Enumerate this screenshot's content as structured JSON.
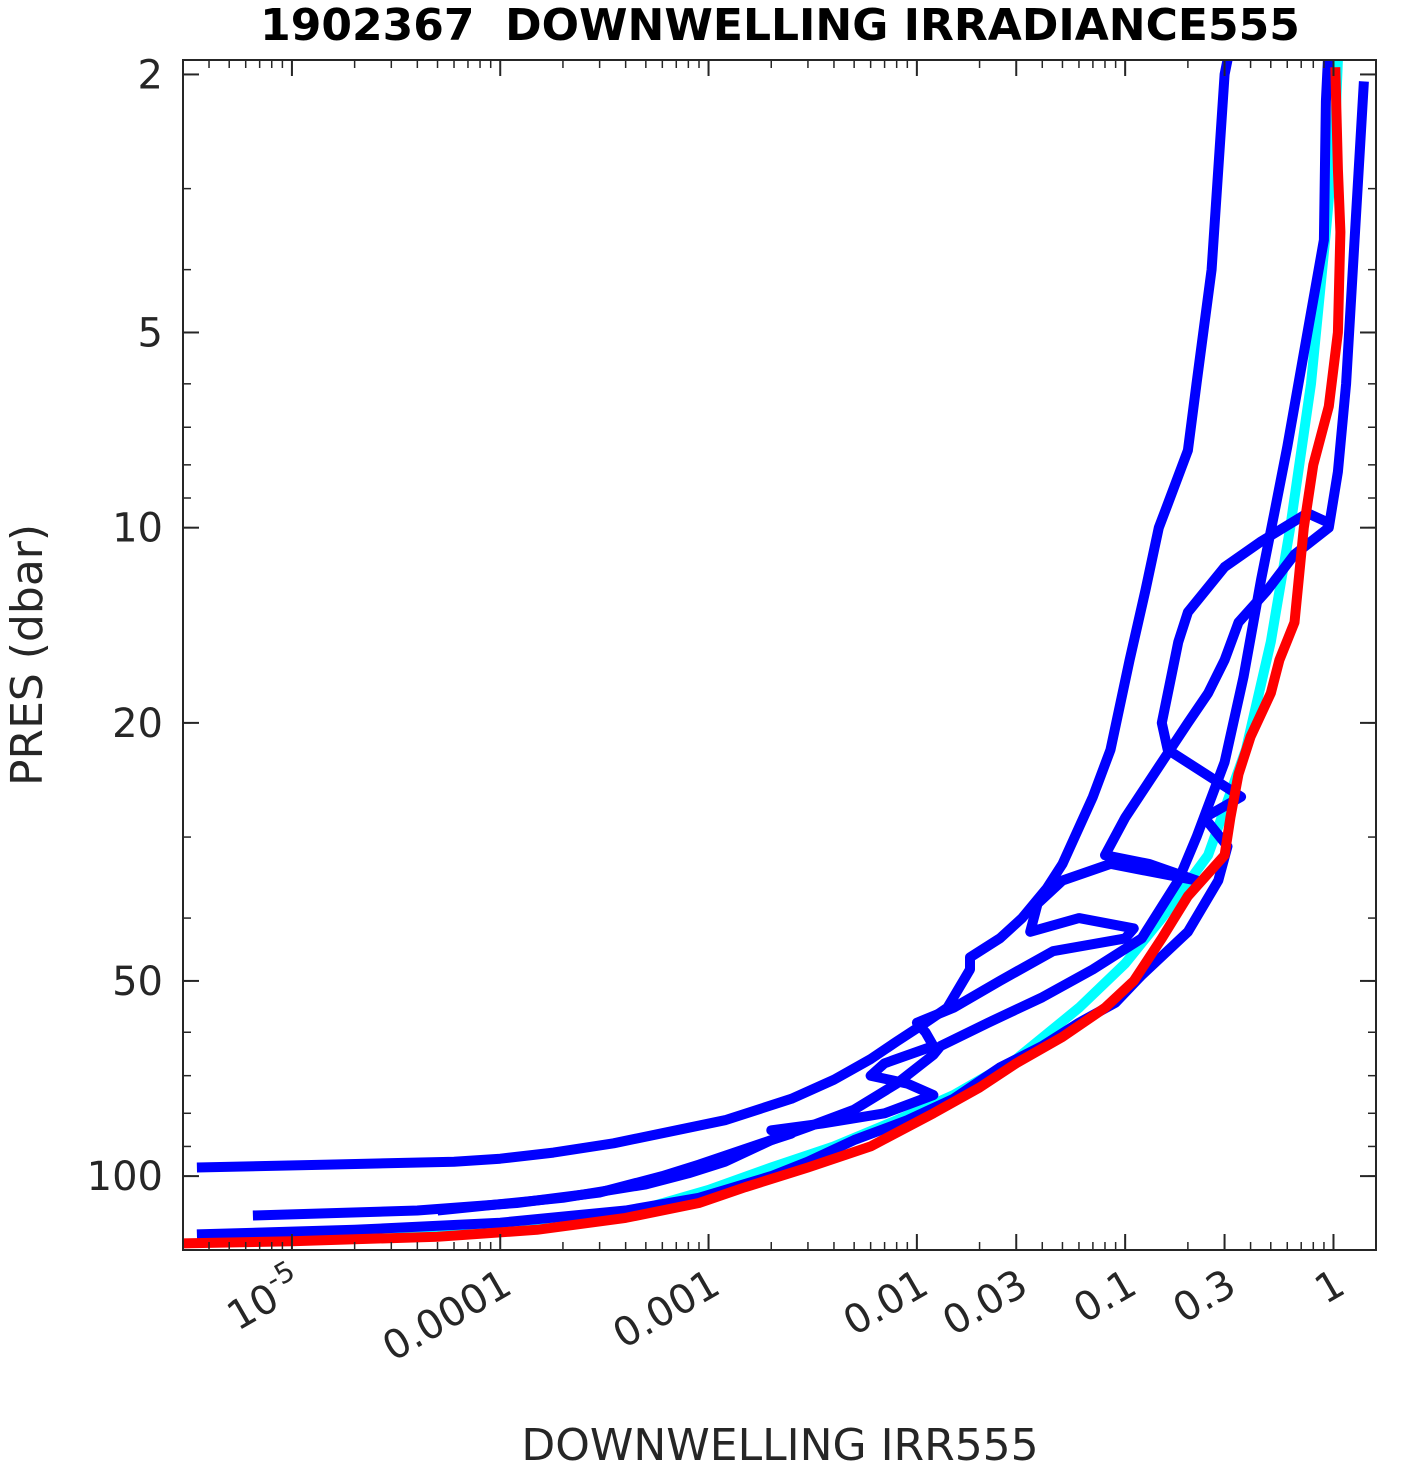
{
  "chart_data": {
    "type": "line",
    "title": "1902367  DOWNWELLING IRRADIANCE555",
    "xlabel": "DOWNWELLING IRR555",
    "ylabel": "PRES (dbar)",
    "x_scale": "log",
    "y_scale": "log",
    "y_reversed": true,
    "xlim": [
      3e-06,
      1.6
    ],
    "ylim": [
      1.9,
      130
    ],
    "x_ticks": [
      {
        "value": 1e-05,
        "base": "10",
        "exp": "-5"
      },
      {
        "value": 0.0001,
        "label": "0.0001"
      },
      {
        "value": 0.001,
        "label": "0.001"
      },
      {
        "value": 0.01,
        "label": "0.01"
      },
      {
        "value": 0.03,
        "label": "0.03"
      },
      {
        "value": 0.1,
        "label": "0.1"
      },
      {
        "value": 0.3,
        "label": "0.3"
      },
      {
        "value": 1,
        "label": "1"
      }
    ],
    "y_ticks": [
      {
        "value": 2,
        "label": "2"
      },
      {
        "value": 5,
        "label": "5"
      },
      {
        "value": 10,
        "label": "10"
      },
      {
        "value": 20,
        "label": "20"
      },
      {
        "value": 50,
        "label": "50"
      },
      {
        "value": 100,
        "label": "100"
      }
    ],
    "grid": false,
    "series": [
      {
        "color": "#00ffff",
        "points": [
          [
            9e-06,
            125
          ],
          [
            3e-05,
            123
          ],
          [
            0.0001,
            120
          ],
          [
            0.0005,
            112
          ],
          [
            0.001,
            105
          ],
          [
            0.002,
            97
          ],
          [
            0.004,
            90
          ],
          [
            0.008,
            82
          ],
          [
            0.015,
            75
          ],
          [
            0.03,
            66
          ],
          [
            0.06,
            55
          ],
          [
            0.1,
            47
          ],
          [
            0.15,
            40
          ],
          [
            0.25,
            32
          ],
          [
            0.38,
            22
          ],
          [
            0.5,
            15
          ],
          [
            0.62,
            10
          ],
          [
            0.78,
            6
          ],
          [
            0.92,
            3.5
          ],
          [
            1.02,
            2.4
          ],
          [
            1.05,
            1.9
          ]
        ]
      },
      {
        "color": "#0000ff",
        "points": [
          [
            3.5e-06,
            97
          ],
          [
            1.5e-05,
            96
          ],
          [
            6e-05,
            95
          ],
          [
            0.0001,
            94
          ],
          [
            0.00018,
            92
          ],
          [
            0.00035,
            89
          ],
          [
            0.0007,
            85
          ],
          [
            0.0012,
            82
          ],
          [
            0.0025,
            76
          ],
          [
            0.004,
            71
          ],
          [
            0.006,
            66
          ],
          [
            0.008,
            62
          ],
          [
            0.011,
            58
          ],
          [
            0.014,
            55
          ],
          [
            0.018,
            48
          ],
          [
            0.018,
            46
          ],
          [
            0.025,
            43
          ],
          [
            0.032,
            40
          ],
          [
            0.042,
            36
          ],
          [
            0.05,
            33
          ],
          [
            0.07,
            26
          ],
          [
            0.085,
            22
          ],
          [
            0.105,
            16
          ],
          [
            0.125,
            12.5
          ],
          [
            0.145,
            10
          ],
          [
            0.16,
            9.2
          ],
          [
            0.2,
            7.6
          ],
          [
            0.22,
            6
          ],
          [
            0.26,
            4
          ],
          [
            0.3,
            2
          ],
          [
            0.31,
            1.9
          ]
        ]
      },
      {
        "color": "#0000ff",
        "points": [
          [
            6.5e-06,
            115
          ],
          [
            4e-05,
            113
          ],
          [
            0.00012,
            110
          ],
          [
            0.0003,
            106
          ],
          [
            0.0006,
            100
          ],
          [
            0.0009,
            96
          ],
          [
            0.002,
            88
          ],
          [
            0.003,
            84
          ],
          [
            0.005,
            79
          ],
          [
            0.008,
            72
          ],
          [
            0.012,
            65
          ],
          [
            0.013,
            63
          ],
          [
            0.022,
            58
          ],
          [
            0.04,
            53
          ],
          [
            0.07,
            48
          ],
          [
            0.12,
            43
          ],
          [
            0.18,
            35
          ],
          [
            0.22,
            30
          ],
          [
            0.3,
            23
          ],
          [
            0.37,
            17
          ],
          [
            0.45,
            12
          ],
          [
            0.52,
            9.5
          ],
          [
            0.6,
            7.5
          ],
          [
            0.75,
            5
          ],
          [
            0.9,
            3.6
          ],
          [
            0.92,
            2.2
          ],
          [
            0.94,
            1.9
          ]
        ]
      },
      {
        "color": "#0000ff",
        "points": [
          [
            5e-05,
            113
          ],
          [
            0.0002,
            108
          ],
          [
            0.0005,
            103
          ],
          [
            0.0008,
            99
          ],
          [
            0.0012,
            95
          ],
          [
            0.002,
            88
          ],
          [
            0.0025,
            86
          ],
          [
            0.002,
            85
          ],
          [
            0.0035,
            83
          ],
          [
            0.007,
            80
          ],
          [
            0.012,
            75
          ],
          [
            0.009,
            72
          ],
          [
            0.006,
            70
          ],
          [
            0.007,
            67
          ],
          [
            0.012,
            63
          ],
          [
            0.011,
            60
          ],
          [
            0.01,
            58
          ],
          [
            0.015,
            55
          ],
          [
            0.025,
            50
          ],
          [
            0.045,
            45
          ],
          [
            0.1,
            43
          ],
          [
            0.11,
            41.5
          ],
          [
            0.06,
            40
          ],
          [
            0.035,
            42
          ],
          [
            0.038,
            38
          ],
          [
            0.05,
            35
          ],
          [
            0.085,
            33
          ],
          [
            0.22,
            35
          ],
          [
            0.13,
            33
          ],
          [
            0.08,
            32
          ],
          [
            0.1,
            28
          ],
          [
            0.15,
            23
          ],
          [
            0.2,
            20
          ],
          [
            0.25,
            18
          ],
          [
            0.3,
            16
          ],
          [
            0.35,
            14
          ],
          [
            0.48,
            12.5
          ],
          [
            0.65,
            11
          ],
          [
            0.95,
            10
          ],
          [
            1.05,
            8.2
          ],
          [
            1.15,
            6
          ],
          [
            1.4,
            2.05
          ]
        ]
      },
      {
        "color": "#0000ff",
        "points": [
          [
            3.5e-06,
            123
          ],
          [
            2e-05,
            121
          ],
          [
            0.0001,
            118
          ],
          [
            0.0004,
            113
          ],
          [
            0.0009,
            108
          ],
          [
            0.002,
            100
          ],
          [
            0.003,
            95
          ],
          [
            0.005,
            88
          ],
          [
            0.009,
            82
          ],
          [
            0.015,
            76
          ],
          [
            0.025,
            68
          ],
          [
            0.04,
            63
          ],
          [
            0.06,
            58
          ],
          [
            0.09,
            54
          ],
          [
            0.12,
            49
          ],
          [
            0.2,
            42
          ],
          [
            0.28,
            35
          ],
          [
            0.31,
            31
          ],
          [
            0.24,
            28
          ],
          [
            0.36,
            26
          ],
          [
            0.16,
            22
          ],
          [
            0.15,
            20
          ],
          [
            0.18,
            15
          ],
          [
            0.2,
            13.5
          ],
          [
            0.3,
            11.5
          ],
          [
            0.45,
            10.5
          ],
          [
            0.75,
            9.5
          ],
          [
            0.93,
            9.8
          ]
        ]
      },
      {
        "color": "#ff0000",
        "points": [
          [
            3e-06,
            127
          ],
          [
            1e-05,
            126
          ],
          [
            5e-05,
            124
          ],
          [
            0.00015,
            121
          ],
          [
            0.0004,
            116
          ],
          [
            0.0009,
            110
          ],
          [
            0.0015,
            104
          ],
          [
            0.003,
            97
          ],
          [
            0.006,
            90
          ],
          [
            0.012,
            80
          ],
          [
            0.02,
            73
          ],
          [
            0.03,
            67
          ],
          [
            0.05,
            61
          ],
          [
            0.08,
            55
          ],
          [
            0.11,
            50
          ],
          [
            0.15,
            43
          ],
          [
            0.2,
            37
          ],
          [
            0.3,
            32
          ],
          [
            0.32,
            28
          ],
          [
            0.35,
            24
          ],
          [
            0.4,
            21
          ],
          [
            0.5,
            18
          ],
          [
            0.55,
            16
          ],
          [
            0.65,
            14
          ],
          [
            0.72,
            10
          ],
          [
            0.8,
            8
          ],
          [
            0.95,
            6.5
          ],
          [
            1.05,
            5
          ],
          [
            1.08,
            3.5
          ],
          [
            1.05,
            2.8
          ],
          [
            1.02,
            1.95
          ]
        ]
      }
    ]
  }
}
